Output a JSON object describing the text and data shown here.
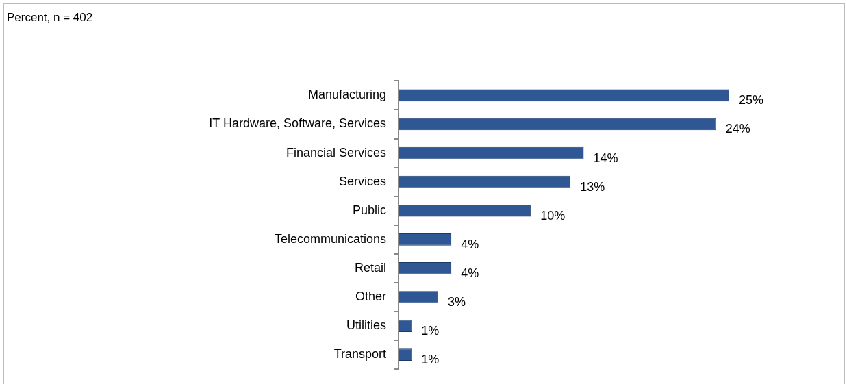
{
  "chart_data": {
    "type": "bar",
    "orientation": "horizontal",
    "title": "Percent, n = 402",
    "categories": [
      "Manufacturing",
      "IT Hardware, Software, Services",
      "Financial Services",
      "Services",
      "Public",
      "Telecommunications",
      "Retail",
      "Other",
      "Utilities",
      "Transport"
    ],
    "values": [
      25,
      24,
      14,
      13,
      10,
      4,
      4,
      3,
      1,
      1
    ],
    "value_labels": [
      "25%",
      "24%",
      "14%",
      "13%",
      "10%",
      "4%",
      "4%",
      "3%",
      "1%",
      "1%"
    ],
    "color": "#2e5793",
    "legend": false
  }
}
